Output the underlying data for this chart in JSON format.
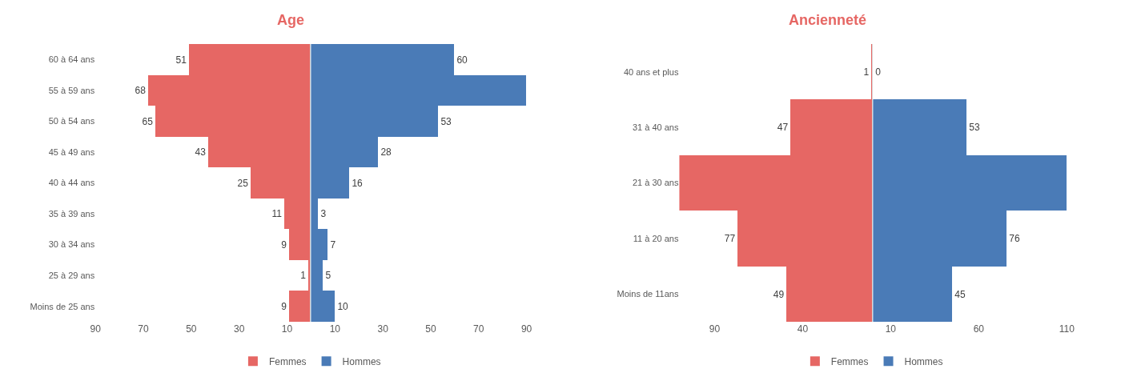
{
  "chart_data": [
    {
      "type": "bar",
      "orientation": "horizontal",
      "title": "Age",
      "categories": [
        "60 à 64 ans",
        "55 à 59 ans",
        "50 à 54 ans",
        "45 à 49 ans",
        "40 à 44 ans",
        "35 à 39 ans",
        "30 à 34 ans",
        "25 à 29 ans",
        "Moins de 25 ans"
      ],
      "series": [
        {
          "name": "Femmes",
          "color": "#e66764",
          "values": [
            51,
            68,
            65,
            43,
            25,
            11,
            9,
            1,
            9
          ],
          "data_labels": true
        }
      ],
      "xlim": [
        90,
        0
      ],
      "xticks": [
        90,
        70,
        50,
        30,
        10
      ],
      "legend": "bottom"
    },
    {
      "type": "bar",
      "orientation": "horizontal",
      "categories": [
        "60 à 64 ans",
        "55 à 59 ans",
        "50 à 54 ans",
        "45 à 49 ans",
        "40 à 44 ans",
        "35 à 39 ans",
        "30 à 34 ans",
        "25 à 29 ans",
        "Moins de 25 ans"
      ],
      "series": [
        {
          "name": "Hommes",
          "color": "#4a7bb7",
          "values": [
            60,
            90,
            53,
            28,
            16,
            3,
            7,
            5,
            10
          ],
          "value_labels": [
            "60",
            null,
            "53",
            "28",
            "16",
            "3",
            "7",
            "5",
            "10"
          ]
        }
      ],
      "xlim": [
        0,
        90
      ],
      "xticks": [
        10,
        30,
        50,
        70,
        90
      ],
      "legend": "bottom",
      "tick_labels": "x"
    },
    {
      "type": "bar",
      "orientation": "horizontal",
      "title": "Ancienneté",
      "categories": [
        "40 ans et plus",
        "31 à 40 ans",
        "21 à 30 ans",
        "11 à 20 ans",
        "Moins de 11ans"
      ],
      "series": [
        {
          "name": "Femmes",
          "color": "#e66764",
          "values": [
            1,
            47,
            110,
            77,
            49
          ],
          "value_labels": [
            "1",
            "47",
            null,
            "77",
            "49"
          ]
        }
      ],
      "xlim": [
        110,
        0
      ],
      "xticks": [
        90,
        40
      ],
      "legend": "bottom"
    },
    {
      "type": "bar",
      "orientation": "horizontal",
      "categories": [
        "40 ans et plus",
        "31 à 40 ans",
        "21 à 30 ans",
        "11 à 20 ans",
        "Moins de 11ans"
      ],
      "series": [
        {
          "name": "Hommes",
          "color": "#4a7bb7",
          "values": [
            0,
            53,
            110,
            76,
            45
          ],
          "value_labels": [
            "0",
            "53",
            null,
            "76",
            "45"
          ]
        }
      ],
      "xlim": [
        0,
        110
      ],
      "xticks": [
        10,
        60,
        110
      ],
      "legend": "bottom",
      "tick_labels": "x"
    }
  ]
}
